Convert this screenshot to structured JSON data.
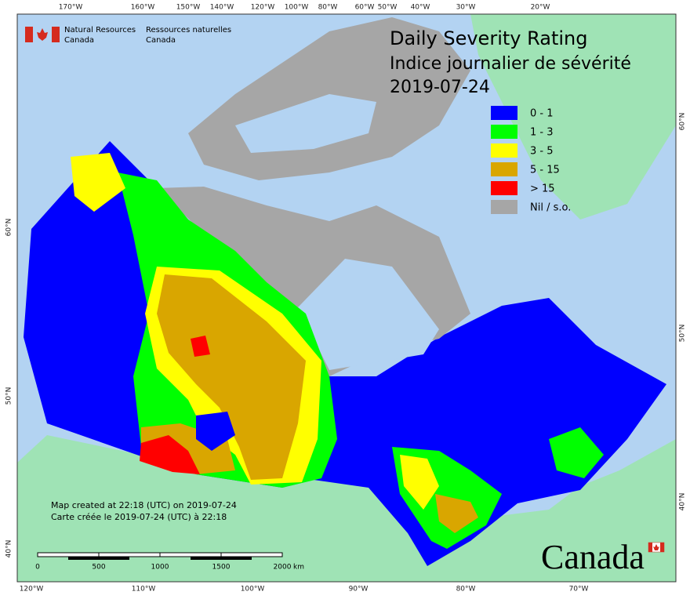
{
  "logo": {
    "en": [
      "Natural Resources",
      "Canada"
    ],
    "fr": [
      "Ressources naturelles",
      "Canada"
    ]
  },
  "title": [
    "Daily Severity Rating",
    "Indice journalier de sévérité",
    "2019-07-24"
  ],
  "legend": [
    {
      "label": "0 - 1",
      "color": "#0000ff"
    },
    {
      "label": "1 - 3",
      "color": "#00ff00"
    },
    {
      "label": "3 - 5",
      "color": "#ffff00"
    },
    {
      "label": "5 - 15",
      "color": "#d9a600"
    },
    {
      "label": "> 15",
      "color": "#ff0000"
    },
    {
      "label": "Nil / s.o.",
      "color": "#a6a6a6"
    }
  ],
  "graticule": {
    "top": [
      "170°W",
      "160°W",
      "150°W",
      "140°W",
      "120°W",
      "100°W",
      "80°W",
      "60°W",
      "50°W",
      "40°W",
      "30°W",
      "20°W"
    ],
    "bottom": [
      "120°W",
      "110°W",
      "100°W",
      "90°W",
      "80°W",
      "70°W"
    ],
    "left": [
      "60°N",
      "50°N",
      "40°N"
    ],
    "right": [
      "60°N",
      "50°N",
      "40°N"
    ]
  },
  "notes": [
    "Map created at 22:18 (UTC) on 2019-07-24",
    "Carte créée le 2019-07-24 (UTC) à 22:18"
  ],
  "scale_bar": {
    "labels": [
      "0",
      "500",
      "1000",
      "1500",
      "2000"
    ],
    "unit": "km"
  },
  "wordmark": "Canada"
}
